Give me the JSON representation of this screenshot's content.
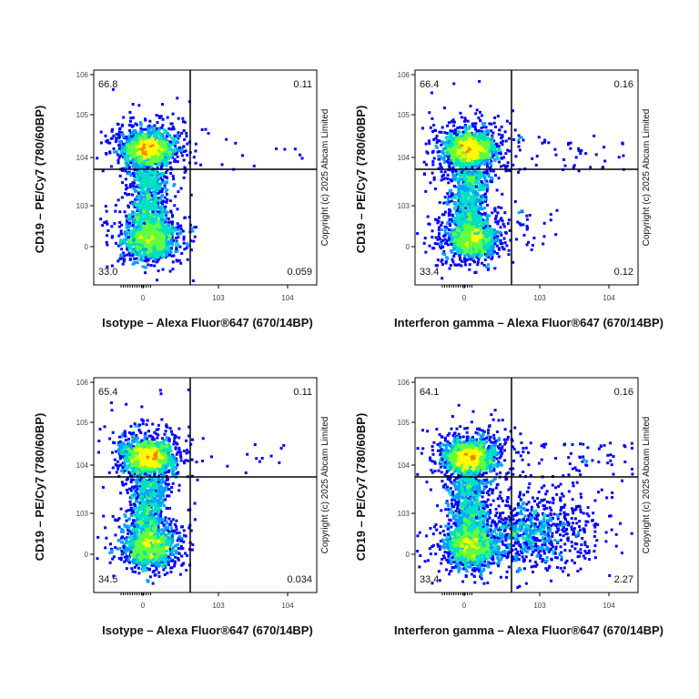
{
  "chart_data": [
    {
      "type": "scatter",
      "subtype": "flow-cytometry-density",
      "xlabel": "Isotype – Alexa Fluor®647 (670/14BP)",
      "ylabel": "CD19 – PE/Cy7 (780/60BP)",
      "xticks": [
        "0",
        "10^3",
        "10^4"
      ],
      "yticks": [
        "0",
        "10^3",
        "10^4",
        "10^5",
        "10^6"
      ],
      "quadrants": {
        "upper_left": "66.8",
        "upper_right": "0.11",
        "lower_left": "33.0",
        "lower_right": "0.059"
      },
      "watermark": "Copyright (c) 2025 Abcam Limited"
    },
    {
      "type": "scatter",
      "subtype": "flow-cytometry-density",
      "xlabel": "Interferon gamma – Alexa Fluor®647 (670/14BP)",
      "ylabel": "CD19 – PE/Cy7 (780/60BP)",
      "xticks": [
        "0",
        "10^3",
        "10^4"
      ],
      "yticks": [
        "0",
        "10^3",
        "10^4",
        "10^5",
        "10^6"
      ],
      "quadrants": {
        "upper_left": "66.4",
        "upper_right": "0.16",
        "lower_left": "33.4",
        "lower_right": "0.12"
      },
      "watermark": "Copyright (c) 2025 Abcam Limited"
    },
    {
      "type": "scatter",
      "subtype": "flow-cytometry-density",
      "xlabel": "Isotype – Alexa Fluor®647 (670/14BP)",
      "ylabel": "CD19 – PE/Cy7 (780/60BP)",
      "xticks": [
        "0",
        "10^3",
        "10^4"
      ],
      "yticks": [
        "0",
        "10^3",
        "10^4",
        "10^5",
        "10^6"
      ],
      "quadrants": {
        "upper_left": "65.4",
        "upper_right": "0.11",
        "lower_left": "34.5",
        "lower_right": "0.034"
      },
      "watermark": "Copyright (c) 2025 Abcam Limited"
    },
    {
      "type": "scatter",
      "subtype": "flow-cytometry-density",
      "xlabel": "Interferon gamma – Alexa Fluor®647 (670/14BP)",
      "ylabel": "CD19 – PE/Cy7 (780/60BP)",
      "xticks": [
        "0",
        "10^3",
        "10^4"
      ],
      "yticks": [
        "0",
        "10^3",
        "10^4",
        "10^5",
        "10^6"
      ],
      "quadrants": {
        "upper_left": "64.1",
        "upper_right": "0.16",
        "lower_left": "33.4",
        "lower_right": "2.27"
      },
      "watermark": "Copyright (c) 2025 Abcam Limited"
    }
  ],
  "colormap": [
    "#0000ff",
    "#00a0ff",
    "#00e0c0",
    "#60ff40",
    "#ffff00",
    "#ff8000",
    "#ff0000"
  ]
}
